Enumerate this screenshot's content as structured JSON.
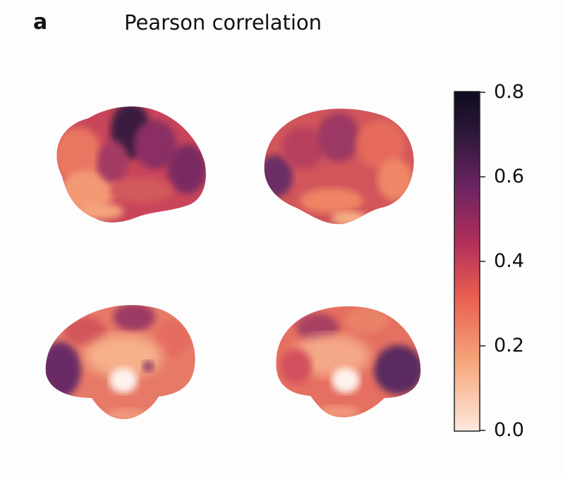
{
  "figure": {
    "panel_label": "a",
    "title": "Pearson correlation"
  },
  "views": [
    {
      "name": "lateral-left",
      "label": ""
    },
    {
      "name": "lateral-right",
      "label": ""
    },
    {
      "name": "medial-left",
      "label": ""
    },
    {
      "name": "medial-right",
      "label": ""
    }
  ],
  "chart_data": {
    "type": "heatmap",
    "title": "Pearson correlation",
    "colorbar": {
      "min": 0.0,
      "max": 0.8,
      "ticks": [
        "0.8",
        "0.6",
        "0.4",
        "0.2",
        "0.0"
      ],
      "tick_values": [
        0.8,
        0.6,
        0.4,
        0.2,
        0.0
      ],
      "colormap_stops": [
        "#fde9de",
        "#f6a77c",
        "#e85d4f",
        "#b3305a",
        "#6b2462",
        "#2b1738",
        "#100c1f"
      ]
    }
  }
}
